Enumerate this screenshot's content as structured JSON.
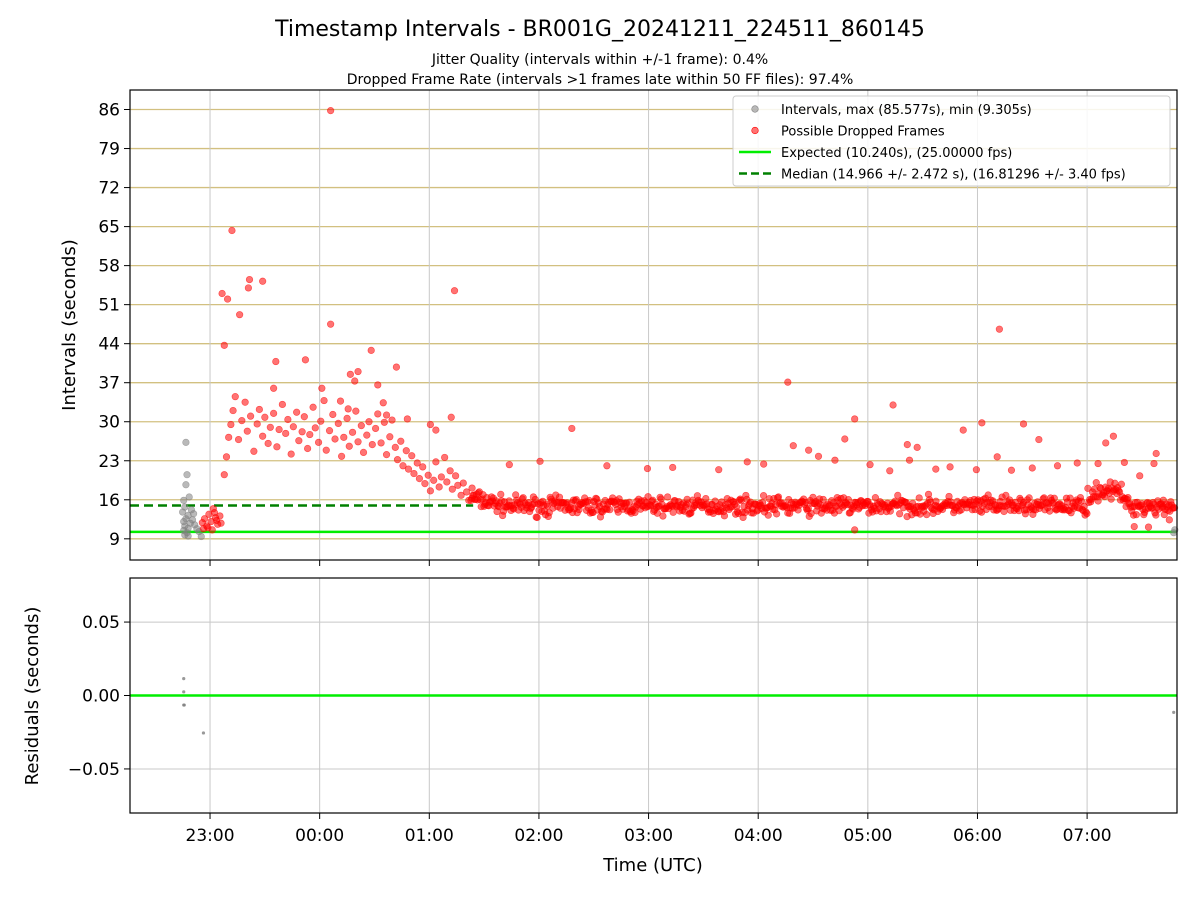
{
  "title": "Timestamp Intervals - BR001G_20241211_224511_860145",
  "subtitle_1": "Jitter Quality (intervals within +/-1 frame): 0.4%",
  "subtitle_2": "Dropped Frame Rate (intervals >1 frames late within 50 FF files): 97.4%",
  "chart_data": [
    {
      "type": "scatter",
      "title": "Timestamp Intervals - BR001G_20241211_224511_860145",
      "xlabel": "",
      "ylabel": "Intervals (seconds)",
      "x_unit": "hours relative to 00:00 UTC",
      "xlim": [
        -1.73,
        7.82
      ],
      "ylim": [
        5.2,
        89.5
      ],
      "y_ticks": [
        9,
        16,
        23,
        30,
        37,
        44,
        51,
        58,
        65,
        72,
        79,
        86
      ],
      "x_ticks": [
        {
          "x": -1,
          "label": "23:00"
        },
        {
          "x": 0,
          "label": "00:00"
        },
        {
          "x": 1,
          "label": "01:00"
        },
        {
          "x": 2,
          "label": "02:00"
        },
        {
          "x": 3,
          "label": "03:00"
        },
        {
          "x": 4,
          "label": "04:00"
        },
        {
          "x": 5,
          "label": "05:00"
        },
        {
          "x": 6,
          "label": "06:00"
        },
        {
          "x": 7,
          "label": "07:00"
        }
      ],
      "grid": true,
      "legend_position": "top-right",
      "legend": [
        {
          "label": "Intervals, max (85.577s), min (9.305s)",
          "kind": "dot",
          "color": "#808080"
        },
        {
          "label": "Possible Dropped Frames",
          "kind": "dot",
          "color": "#ff0000"
        },
        {
          "label": "Expected (10.240s), (25.00000 fps)",
          "kind": "line",
          "color": "#00ee00"
        },
        {
          "label": "Median (14.966 +/- 2.472 s), (16.81296 +/- 3.40 fps)",
          "kind": "dash",
          "color": "#008000"
        }
      ],
      "expected_line": 10.24,
      "median_line": {
        "value": 14.966,
        "x_end": 1.4
      },
      "series": [
        {
          "name": "Intervals, max (85.577s), min (9.305s)",
          "color": "#808080",
          "points": [
            [
              -1.22,
              26.3
            ],
            [
              -1.21,
              20.5
            ],
            [
              -1.22,
              18.7
            ],
            [
              -1.24,
              15.9
            ],
            [
              -1.23,
              14.7
            ],
            [
              -1.25,
              13.8
            ],
            [
              -1.2,
              13.2
            ],
            [
              -1.22,
              12.6
            ],
            [
              -1.24,
              12.1
            ],
            [
              -1.18,
              11.8
            ],
            [
              -1.23,
              11.3
            ],
            [
              -1.2,
              10.9
            ],
            [
              -1.24,
              10.5
            ],
            [
              -1.21,
              10.1
            ],
            [
              -1.23,
              9.7
            ],
            [
              -1.2,
              9.5
            ],
            [
              -1.16,
              12.4
            ],
            [
              -1.14,
              11.5
            ],
            [
              -1.12,
              10.8
            ],
            [
              -1.1,
              10.3
            ],
            [
              -1.08,
              9.4
            ],
            [
              -1.17,
              14.2
            ],
            [
              -1.19,
              16.5
            ],
            [
              -1.15,
              13.5
            ],
            [
              7.79,
              10.1
            ],
            [
              7.8,
              10.6
            ]
          ]
        },
        {
          "name": "Possible Dropped Frames",
          "color": "#ff0000",
          "points": [
            [
              -1.07,
              11.9
            ],
            [
              -1.05,
              12.6
            ],
            [
              -1.03,
              11.3
            ],
            [
              -1.01,
              13.4
            ],
            [
              -0.99,
              12.1
            ],
            [
              -0.97,
              14.4
            ],
            [
              -0.95,
              12.8
            ],
            [
              -0.93,
              11.6
            ],
            [
              -0.91,
              13.1
            ],
            [
              -1.06,
              10.8
            ],
            [
              -1.02,
              11.0
            ],
            [
              -0.98,
              10.6
            ],
            [
              -0.94,
              12.3
            ],
            [
              -0.9,
              11.8
            ],
            [
              -0.96,
              13.7
            ],
            [
              -0.89,
              53.0
            ],
            [
              -0.84,
              52.0
            ],
            [
              -0.8,
              64.3
            ],
            [
              -0.73,
              49.2
            ],
            [
              -0.87,
              43.7
            ],
            [
              -0.64,
              55.5
            ],
            [
              -0.65,
              54.0
            ],
            [
              -0.52,
              55.2
            ],
            [
              -0.42,
              36.0
            ],
            [
              -0.4,
              40.8
            ],
            [
              -0.13,
              41.1
            ],
            [
              0.1,
              85.8
            ],
            [
              0.1,
              47.5
            ],
            [
              0.28,
              38.5
            ],
            [
              0.47,
              42.8
            ],
            [
              0.7,
              39.8
            ],
            [
              0.8,
              30.5
            ],
            [
              1.23,
              53.5
            ],
            [
              1.01,
              29.5
            ],
            [
              1.06,
              28.5
            ],
            [
              1.2,
              30.8
            ],
            [
              0.58,
              33.4
            ],
            [
              0.53,
              36.6
            ],
            [
              0.32,
              37.3
            ],
            [
              0.26,
              32.3
            ],
            [
              0.02,
              36.0
            ],
            [
              0.61,
              31.2
            ],
            [
              0.35,
              39.0
            ],
            [
              0.19,
              33.7
            ],
            [
              -0.87,
              20.5
            ],
            [
              -0.85,
              23.7
            ],
            [
              -0.83,
              27.2
            ],
            [
              -0.81,
              29.5
            ],
            [
              -0.79,
              32.0
            ],
            [
              -0.77,
              34.5
            ],
            [
              -0.74,
              26.8
            ],
            [
              -0.71,
              30.2
            ],
            [
              -0.68,
              33.5
            ],
            [
              -0.66,
              28.3
            ],
            [
              -0.63,
              31.0
            ],
            [
              -0.6,
              24.7
            ],
            [
              -0.57,
              29.6
            ],
            [
              -0.55,
              32.2
            ],
            [
              -0.52,
              27.4
            ],
            [
              -0.5,
              30.8
            ],
            [
              -0.47,
              26.1
            ],
            [
              -0.45,
              29.0
            ],
            [
              -0.42,
              31.5
            ],
            [
              -0.39,
              25.5
            ],
            [
              -0.37,
              28.6
            ],
            [
              -0.34,
              33.1
            ],
            [
              -0.31,
              27.9
            ],
            [
              -0.29,
              30.4
            ],
            [
              -0.26,
              24.2
            ],
            [
              -0.24,
              29.1
            ],
            [
              -0.21,
              31.7
            ],
            [
              -0.19,
              26.6
            ],
            [
              -0.16,
              28.2
            ],
            [
              -0.14,
              30.9
            ],
            [
              -0.11,
              25.2
            ],
            [
              -0.09,
              27.7
            ],
            [
              -0.06,
              32.6
            ],
            [
              -0.04,
              28.9
            ],
            [
              -0.01,
              26.3
            ],
            [
              0.01,
              30.1
            ],
            [
              0.04,
              33.8
            ],
            [
              0.06,
              24.9
            ],
            [
              0.09,
              28.4
            ],
            [
              0.12,
              31.3
            ],
            [
              0.14,
              26.9
            ],
            [
              0.17,
              29.7
            ],
            [
              0.2,
              23.8
            ],
            [
              0.22,
              27.2
            ],
            [
              0.25,
              30.6
            ],
            [
              0.27,
              25.6
            ],
            [
              0.3,
              28.1
            ],
            [
              0.33,
              31.9
            ],
            [
              0.35,
              26.4
            ],
            [
              0.38,
              29.3
            ],
            [
              0.4,
              24.5
            ],
            [
              0.43,
              27.6
            ],
            [
              0.45,
              30.0
            ],
            [
              0.48,
              25.9
            ],
            [
              0.51,
              28.8
            ],
            [
              0.53,
              31.4
            ],
            [
              0.56,
              26.2
            ],
            [
              0.59,
              29.9
            ],
            [
              0.61,
              24.1
            ],
            [
              0.64,
              27.3
            ],
            [
              0.66,
              30.3
            ],
            [
              0.69,
              25.4
            ],
            [
              0.71,
              23.2
            ],
            [
              0.74,
              26.5
            ],
            [
              0.76,
              22.1
            ],
            [
              0.79,
              24.8
            ],
            [
              0.81,
              21.5
            ],
            [
              0.84,
              23.9
            ],
            [
              0.86,
              20.7
            ],
            [
              0.89,
              22.6
            ],
            [
              0.91,
              19.8
            ],
            [
              0.94,
              21.9
            ],
            [
              0.96,
              18.9
            ],
            [
              0.99,
              20.4
            ],
            [
              1.01,
              17.6
            ],
            [
              1.04,
              19.5
            ],
            [
              1.06,
              22.8
            ],
            [
              1.09,
              18.3
            ],
            [
              1.11,
              20.1
            ],
            [
              1.14,
              23.6
            ],
            [
              1.16,
              19.2
            ],
            [
              1.19,
              21.2
            ],
            [
              1.21,
              17.9
            ],
            [
              1.24,
              20.3
            ],
            [
              1.26,
              18.6
            ],
            [
              1.29,
              16.8
            ],
            [
              1.31,
              19.0
            ],
            [
              1.34,
              17.4
            ],
            [
              1.36,
              15.9
            ],
            [
              1.39,
              18.1
            ],
            [
              2.3,
              28.8
            ],
            [
              2.01,
              22.9
            ],
            [
              1.73,
              22.3
            ],
            [
              2.62,
              22.1
            ],
            [
              2.99,
              21.6
            ],
            [
              3.22,
              21.8
            ],
            [
              3.64,
              21.4
            ],
            [
              3.9,
              22.8
            ],
            [
              4.05,
              22.4
            ],
            [
              4.27,
              37.1
            ],
            [
              4.32,
              25.7
            ],
            [
              4.46,
              24.9
            ],
            [
              4.55,
              23.8
            ],
            [
              4.7,
              23.1
            ],
            [
              4.79,
              26.9
            ],
            [
              4.88,
              30.5
            ],
            [
              5.02,
              22.3
            ],
            [
              5.2,
              21.2
            ],
            [
              5.23,
              33.0
            ],
            [
              5.36,
              25.9
            ],
            [
              5.45,
              25.4
            ],
            [
              5.38,
              23.1
            ],
            [
              5.62,
              21.5
            ],
            [
              5.75,
              21.9
            ],
            [
              5.87,
              28.5
            ],
            [
              5.99,
              21.4
            ],
            [
              6.04,
              29.8
            ],
            [
              6.2,
              46.6
            ],
            [
              6.18,
              23.7
            ],
            [
              6.31,
              21.3
            ],
            [
              6.42,
              29.6
            ],
            [
              6.5,
              21.7
            ],
            [
              6.56,
              26.8
            ],
            [
              6.73,
              22.1
            ],
            [
              6.91,
              22.6
            ],
            [
              7.1,
              22.5
            ],
            [
              7.17,
              26.2
            ],
            [
              7.24,
              27.4
            ],
            [
              7.34,
              22.7
            ],
            [
              7.48,
              20.3
            ],
            [
              7.61,
              22.5
            ],
            [
              7.63,
              24.3
            ],
            [
              4.88,
              10.6
            ],
            [
              7.43,
              11.2
            ],
            [
              7.56,
              11.1
            ],
            [
              7.75,
              12.4
            ],
            [
              7.69,
              14.8
            ]
          ]
        }
      ],
      "dense_band": {
        "x_start": 1.38,
        "x_end": 7.8,
        "center": 14.9,
        "spread": 1.6,
        "near_end_rise": 18.0,
        "color": "#ff0000"
      }
    },
    {
      "type": "scatter",
      "xlabel": "Time (UTC)",
      "ylabel": "Residuals (seconds)",
      "xlim": [
        -1.73,
        7.82
      ],
      "ylim": [
        -0.08,
        0.08
      ],
      "y_ticks": [
        {
          "y": 0.05,
          "label": "0.05"
        },
        {
          "y": 0.0,
          "label": "0.00"
        },
        {
          "y": -0.05,
          "label": "−0.05"
        }
      ],
      "x_ticks": [
        {
          "x": -1,
          "label": "23:00"
        },
        {
          "x": 0,
          "label": "00:00"
        },
        {
          "x": 1,
          "label": "01:00"
        },
        {
          "x": 2,
          "label": "02:00"
        },
        {
          "x": 3,
          "label": "03:00"
        },
        {
          "x": 4,
          "label": "04:00"
        },
        {
          "x": 5,
          "label": "05:00"
        },
        {
          "x": 6,
          "label": "06:00"
        },
        {
          "x": 7,
          "label": "07:00"
        }
      ],
      "grid": true,
      "zero_line_color": "#00ee00",
      "series": [
        {
          "name": "",
          "color": "#808080",
          "points": [
            [
              -1.24,
              0.0115
            ],
            [
              -1.24,
              0.0025
            ],
            [
              -1.24,
              -0.0065
            ],
            [
              -1.235,
              -0.0065
            ],
            [
              -1.06,
              -0.0255
            ],
            [
              7.79,
              -0.0115
            ]
          ]
        }
      ]
    }
  ]
}
